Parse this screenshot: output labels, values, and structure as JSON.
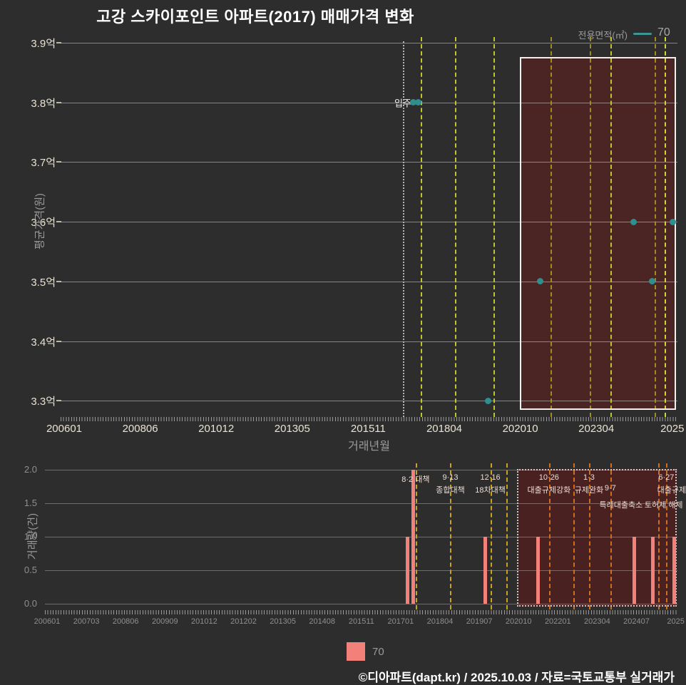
{
  "title": "고강 스카이포인트 아파트(2017) 매매가격 변화",
  "top_legend": {
    "label": "전용면적(㎡)",
    "value": "70"
  },
  "bottom_legend": {
    "value": "70"
  },
  "footer": "©디아파트(dapt.kr) / 2025.10.03 / 자료=국토교통부 실거래가",
  "colors": {
    "background": "#2d2d2d",
    "tick_cream": "#e9e3d1",
    "tick_gray": "#8f8f8f",
    "point_teal": "#2f8e8e",
    "legend_line_teal": "#3d9691",
    "bar_salmon": "#f3817a",
    "policy_yellow": "#bdc62e",
    "policy_olive": "#a08c1d",
    "policy_bright": "#ccd831",
    "policy_gold": "#c9a21f",
    "policy_orange": "#cf6f1d",
    "highlight_fill": "#4b2424",
    "highlight_border": "#f2f0ee",
    "volume_box_fill": "#4a2121",
    "volume_box_border": "#c8c8c8",
    "move_in_line": "#b5b5b5",
    "annotation_text": "#eddcd5"
  },
  "price_chart": {
    "ylabel": "평균가격(원)",
    "xlabel": "거래년월",
    "yticks": [
      "3.9억",
      "3.8억",
      "3.7억",
      "3.6억",
      "3.5억",
      "3.4억",
      "3.3억"
    ],
    "xticks": [
      "200601",
      "200806",
      "201012",
      "201305",
      "201511",
      "201804",
      "202010",
      "202304",
      "2025"
    ],
    "move_in": {
      "month": 132,
      "label": "입주",
      "value": 3.8
    },
    "points": [
      {
        "month": 136,
        "value": 3.8,
        "date": "201705"
      },
      {
        "month": 138,
        "value": 3.8,
        "date": "201707"
      },
      {
        "month": 165,
        "value": 3.3,
        "date": "201910"
      },
      {
        "month": 185,
        "value": 3.5,
        "date": "202106"
      },
      {
        "month": 221,
        "value": 3.6,
        "date": "202406"
      },
      {
        "month": 228,
        "value": 3.5,
        "date": "202501"
      },
      {
        "month": 236,
        "value": 3.6,
        "date": "202509"
      }
    ],
    "policy_lines": [
      {
        "month": 139,
        "color": "#bdc62e"
      },
      {
        "month": 152,
        "color": "#bdc62e"
      },
      {
        "month": 167,
        "color": "#bdc62e"
      },
      {
        "month": 189,
        "color": "#a08c1d"
      },
      {
        "month": 204,
        "color": "#a08c1d"
      },
      {
        "month": 212,
        "color": "#bdc62e"
      },
      {
        "month": 229,
        "color": "#a08c1d"
      },
      {
        "month": 233,
        "color": "#ccd831"
      }
    ],
    "highlight_box": {
      "from_month": 177,
      "to_month": 237.3
    }
  },
  "volume_chart": {
    "ylabel": "거래량(건)",
    "yticks": [
      "2.0",
      "1.5",
      "1.0",
      "0.5",
      "0.0"
    ],
    "xticks": [
      "200601",
      "200703",
      "200806",
      "200909",
      "201012",
      "201202",
      "201305",
      "201408",
      "201511",
      "201701",
      "201804",
      "201907",
      "202010",
      "202201",
      "202304",
      "202407",
      "2025"
    ],
    "bars": [
      {
        "month": 136,
        "count": 1
      },
      {
        "month": 138,
        "count": 2
      },
      {
        "month": 165,
        "count": 1
      },
      {
        "month": 185,
        "count": 1
      },
      {
        "month": 221,
        "count": 1
      },
      {
        "month": 228,
        "count": 1
      },
      {
        "month": 236,
        "count": 1
      }
    ],
    "policy_lines": [
      {
        "month": 139,
        "color": "#c9a21f"
      },
      {
        "month": 152,
        "color": "#c9a21f"
      },
      {
        "month": 167,
        "color": "#c9a21f"
      },
      {
        "month": 173,
        "color": "#c9a21f"
      },
      {
        "month": 189,
        "color": "#cf6f1d"
      },
      {
        "month": 198,
        "color": "#cf6f1d"
      },
      {
        "month": 204,
        "color": "#cf6f1d"
      },
      {
        "month": 212,
        "color": "#cf6f1d"
      },
      {
        "month": 230,
        "color": "#cf6f1d"
      },
      {
        "month": 233,
        "color": "#cf6f1d"
      }
    ],
    "annotations": [
      {
        "month": 139,
        "row": 1,
        "text": "8·2 대책"
      },
      {
        "month": 152,
        "row": 1,
        "text": "9·13"
      },
      {
        "month": 152,
        "row": 2,
        "text": "종합대책"
      },
      {
        "month": 167,
        "row": 1,
        "text": "12·16"
      },
      {
        "month": 167,
        "row": 2,
        "text": "18차대책"
      },
      {
        "month": 189,
        "row": 1,
        "text": "10·26"
      },
      {
        "month": 189,
        "row": 2,
        "text": "대출규제강화"
      },
      {
        "month": 204,
        "row": 1,
        "text": "1·3"
      },
      {
        "month": 204,
        "row": 2,
        "text": "규제완화"
      },
      {
        "month": 212,
        "row": 2,
        "text": "9·7"
      },
      {
        "month": 216,
        "row": 3,
        "text": "특례대출축소"
      },
      {
        "month": 232,
        "row": 3,
        "text": "토허제 해제"
      },
      {
        "month": 233,
        "row": 1,
        "text": "6·27"
      },
      {
        "month": 235,
        "row": 2,
        "text": "대출규제"
      }
    ],
    "highlight_box": {
      "from_month": 177,
      "to_month": 237.3
    }
  },
  "chart_data": [
    {
      "type": "scatter",
      "title": "고강 스카이포인트 아파트(2017) 매매가격 변화",
      "xlabel": "거래년월",
      "ylabel": "평균가격(원)",
      "ylim": [
        3.3,
        3.9
      ],
      "yticks": [
        "3.9억",
        "3.8억",
        "3.7억",
        "3.6억",
        "3.5억",
        "3.4억",
        "3.3억"
      ],
      "xticks": [
        "200601",
        "200806",
        "201012",
        "201305",
        "201511",
        "201804",
        "202010",
        "202304",
        "2025"
      ],
      "legend": [
        {
          "name": "전용면적(㎡) 70",
          "color": "#2f8e8e"
        }
      ],
      "series": [
        {
          "name": "70",
          "points": [
            {
              "x": "201705",
              "y": 3.8
            },
            {
              "x": "201707",
              "y": 3.8
            },
            {
              "x": "201910",
              "y": 3.3
            },
            {
              "x": "202106",
              "y": 3.5
            },
            {
              "x": "202406",
              "y": 3.6
            },
            {
              "x": "202501",
              "y": 3.5
            },
            {
              "x": "202509",
              "y": 3.6
            }
          ]
        }
      ],
      "annotations": [
        "입주 (2017-01)",
        "8·2 대책 (2017-08)",
        "9·13 종합대책 (2018-09)",
        "12·16 18차대책 (2019-12)",
        "10·26 대출규제강화 (2021-10)",
        "1·3 규제완화 (2023-01)",
        "9·7 특례대출축소 (2023-09)",
        "토허제 해제 (2025-03)",
        "6·27 대출규제 (2025-06)"
      ],
      "highlight_region": "2020-10 to 2025-09",
      "grid": true
    },
    {
      "type": "bar",
      "ylabel": "거래량(건)",
      "ylim": [
        0,
        2
      ],
      "yticks": [
        "2.0",
        "1.5",
        "1.0",
        "0.5",
        "0.0"
      ],
      "xticks": [
        "200601",
        "200703",
        "200806",
        "200909",
        "201012",
        "201202",
        "201305",
        "201408",
        "201511",
        "201701",
        "201804",
        "201907",
        "202010",
        "202201",
        "202304",
        "202407",
        "2025"
      ],
      "legend": [
        {
          "name": "70",
          "color": "#f3817a"
        }
      ],
      "series": [
        {
          "name": "70",
          "points": [
            {
              "x": "201705",
              "y": 1
            },
            {
              "x": "201707",
              "y": 2
            },
            {
              "x": "201910",
              "y": 1
            },
            {
              "x": "202106",
              "y": 1
            },
            {
              "x": "202406",
              "y": 1
            },
            {
              "x": "202501",
              "y": 1
            },
            {
              "x": "202509",
              "y": 1
            }
          ]
        }
      ],
      "grid": true
    }
  ]
}
